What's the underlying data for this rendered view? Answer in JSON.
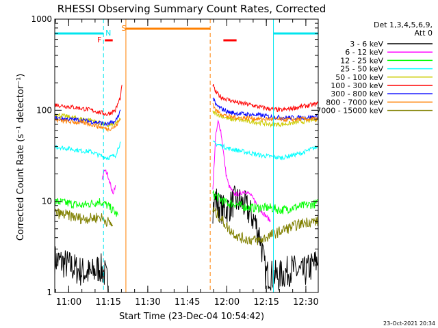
{
  "chart_data": {
    "type": "line",
    "title": "RHESSI Observing Summary Count Rates, Corrected",
    "xlabel": "Start Time (23-Dec-04 10:54:42)",
    "ylabel": "Corrected Count Rate (s⁻¹ detector⁻¹)",
    "y_scale": "log",
    "ylim": [
      1,
      1000
    ],
    "y_ticks": [
      "1",
      "10",
      "100",
      "1000"
    ],
    "xlim_minutes": [
      0,
      100
    ],
    "x_ticks": [
      {
        "label": "11:00",
        "minute": 5.3
      },
      {
        "label": "11:15",
        "minute": 20.3
      },
      {
        "label": "11:30",
        "minute": 35.3
      },
      {
        "label": "11:45",
        "minute": 50.3
      },
      {
        "label": "12:00",
        "minute": 65.3
      },
      {
        "label": "12:15",
        "minute": 80.3
      },
      {
        "label": "12:30",
        "minute": 95.3
      }
    ],
    "legend": {
      "placement": "right",
      "header": [
        "Det 1,3,4,5,6,9,",
        "Att 0"
      ]
    },
    "series": [
      {
        "name": "3 - 6 keV",
        "color": "#000000",
        "pre": [
          [
            0,
            2.3
          ],
          [
            5,
            2.0
          ],
          [
            10,
            1.7
          ],
          [
            14,
            1.6
          ],
          [
            17,
            1.9
          ],
          [
            19,
            1.6
          ],
          [
            21,
            1.0
          ]
        ],
        "post": [
          [
            60,
            8.5
          ],
          [
            61,
            11
          ],
          [
            62,
            9
          ],
          [
            64,
            8
          ],
          [
            66,
            8.5
          ],
          [
            68,
            10
          ],
          [
            70,
            10
          ],
          [
            72,
            9
          ],
          [
            74,
            7.5
          ],
          [
            76,
            6
          ],
          [
            78,
            4
          ],
          [
            80,
            1.6
          ],
          [
            85,
            1.5
          ],
          [
            90,
            1.8
          ],
          [
            94,
            1.6
          ],
          [
            100,
            2.2
          ]
        ]
      },
      {
        "name": "6 - 12 keV",
        "color": "#ff00ff",
        "pre": [
          [
            18,
            18
          ],
          [
            19,
            22
          ],
          [
            20,
            20
          ],
          [
            21,
            16
          ],
          [
            22,
            12
          ],
          [
            23,
            15
          ]
        ],
        "post": [
          [
            60,
            13
          ],
          [
            61,
            50
          ],
          [
            62,
            75
          ],
          [
            63,
            60
          ],
          [
            64,
            35
          ],
          [
            65,
            20
          ],
          [
            66,
            15
          ],
          [
            68,
            12
          ],
          [
            70,
            12
          ],
          [
            72,
            13
          ],
          [
            74,
            12
          ],
          [
            76,
            10
          ],
          [
            78,
            8
          ],
          [
            80,
            7
          ],
          [
            82,
            6
          ]
        ]
      },
      {
        "name": "12 - 25 keV",
        "color": "#00ff00",
        "pre": [
          [
            0,
            10
          ],
          [
            5,
            9.5
          ],
          [
            10,
            9
          ],
          [
            14,
            9.5
          ],
          [
            17,
            10
          ],
          [
            20,
            9
          ],
          [
            22,
            8
          ],
          [
            24,
            7
          ]
        ],
        "post": [
          [
            60,
            12
          ],
          [
            62,
            11
          ],
          [
            64,
            10
          ],
          [
            66,
            9.5
          ],
          [
            68,
            9.5
          ],
          [
            70,
            9
          ],
          [
            74,
            8.5
          ],
          [
            78,
            8.5
          ],
          [
            82,
            8.5
          ],
          [
            86,
            8
          ],
          [
            90,
            8.5
          ],
          [
            95,
            9
          ],
          [
            100,
            9.5
          ]
        ]
      },
      {
        "name": "25 - 50 keV",
        "color": "#00ffff",
        "pre": [
          [
            0,
            40
          ],
          [
            5,
            38
          ],
          [
            10,
            36
          ],
          [
            14,
            35
          ],
          [
            17,
            32
          ],
          [
            20,
            30
          ],
          [
            23,
            32
          ],
          [
            25,
            45
          ]
        ],
        "post": [
          [
            60,
            44
          ],
          [
            62,
            42
          ],
          [
            64,
            40
          ],
          [
            66,
            38
          ],
          [
            70,
            36
          ],
          [
            74,
            34
          ],
          [
            78,
            32
          ],
          [
            82,
            31
          ],
          [
            86,
            30
          ],
          [
            90,
            32
          ],
          [
            94,
            34
          ],
          [
            98,
            38
          ],
          [
            100,
            40
          ]
        ]
      },
      {
        "name": "50 - 100 keV",
        "color": "#cccc00",
        "pre": [
          [
            0,
            90
          ],
          [
            5,
            85
          ],
          [
            10,
            80
          ],
          [
            14,
            78
          ],
          [
            17,
            72
          ],
          [
            20,
            68
          ],
          [
            23,
            70
          ],
          [
            25,
            80
          ]
        ],
        "post": [
          [
            60,
            95
          ],
          [
            62,
            90
          ],
          [
            64,
            85
          ],
          [
            66,
            80
          ],
          [
            70,
            78
          ],
          [
            74,
            75
          ],
          [
            78,
            73
          ],
          [
            82,
            70
          ],
          [
            86,
            70
          ],
          [
            90,
            72
          ],
          [
            94,
            75
          ],
          [
            98,
            78
          ],
          [
            100,
            80
          ]
        ]
      },
      {
        "name": "100 - 300 keV",
        "color": "#ff0000",
        "pre": [
          [
            0,
            115
          ],
          [
            5,
            110
          ],
          [
            10,
            105
          ],
          [
            14,
            100
          ],
          [
            17,
            95
          ],
          [
            20,
            90
          ],
          [
            23,
            100
          ],
          [
            25,
            140
          ],
          [
            25.5,
            190
          ]
        ],
        "post": [
          [
            60,
            190
          ],
          [
            61,
            160
          ],
          [
            63,
            140
          ],
          [
            66,
            130
          ],
          [
            70,
            120
          ],
          [
            74,
            115
          ],
          [
            78,
            108
          ],
          [
            82,
            103
          ],
          [
            86,
            100
          ],
          [
            90,
            105
          ],
          [
            94,
            110
          ],
          [
            98,
            115
          ],
          [
            100,
            118
          ]
        ]
      },
      {
        "name": "300 - 800 keV",
        "color": "#0000ff",
        "pre": [
          [
            0,
            82
          ],
          [
            5,
            80
          ],
          [
            10,
            78
          ],
          [
            14,
            75
          ],
          [
            17,
            73
          ],
          [
            20,
            70
          ],
          [
            23,
            75
          ],
          [
            25,
            100
          ]
        ],
        "post": [
          [
            60,
            140
          ],
          [
            61,
            115
          ],
          [
            63,
            105
          ],
          [
            66,
            95
          ],
          [
            70,
            92
          ],
          [
            74,
            90
          ],
          [
            78,
            88
          ],
          [
            82,
            85
          ],
          [
            86,
            83
          ],
          [
            90,
            83
          ],
          [
            94,
            83
          ],
          [
            98,
            84
          ],
          [
            100,
            85
          ]
        ]
      },
      {
        "name": "800 - 7000 keV",
        "color": "#ff8000",
        "pre": [
          [
            0,
            78
          ],
          [
            5,
            75
          ],
          [
            10,
            73
          ],
          [
            14,
            70
          ],
          [
            17,
            66
          ],
          [
            20,
            62
          ],
          [
            23,
            66
          ],
          [
            25,
            80
          ]
        ],
        "post": [
          [
            60,
            120
          ],
          [
            61,
            100
          ],
          [
            63,
            92
          ],
          [
            66,
            85
          ],
          [
            70,
            83
          ],
          [
            74,
            82
          ],
          [
            78,
            80
          ],
          [
            82,
            80
          ],
          [
            86,
            79
          ],
          [
            90,
            79
          ],
          [
            94,
            80
          ],
          [
            98,
            80
          ],
          [
            100,
            80
          ]
        ]
      },
      {
        "name": "7000 - 15000 keV",
        "color": "#808000",
        "pre": [
          [
            0,
            7.5
          ],
          [
            5,
            7
          ],
          [
            10,
            6.5
          ],
          [
            14,
            6.5
          ],
          [
            17,
            6.8
          ],
          [
            20,
            6
          ],
          [
            22,
            5.5
          ]
        ],
        "post": [
          [
            60,
            8
          ],
          [
            62,
            7
          ],
          [
            64,
            6
          ],
          [
            66,
            5
          ],
          [
            68,
            4.5
          ],
          [
            70,
            4
          ],
          [
            74,
            3.8
          ],
          [
            78,
            3.7
          ],
          [
            80,
            4
          ],
          [
            84,
            4.5
          ],
          [
            88,
            5
          ],
          [
            92,
            5.5
          ],
          [
            96,
            6
          ],
          [
            100,
            6
          ]
        ]
      }
    ],
    "annotations": {
      "flags": [
        {
          "label": "F",
          "color": "#ff0000",
          "bar": [
            19,
            22
          ]
        },
        {
          "label": "N",
          "color": "#00e5ee",
          "bar": [
            0,
            18.5
          ]
        },
        {
          "label": "S",
          "color": "#ff8000",
          "bar": [
            27,
            59
          ]
        }
      ],
      "extra_bars": [
        {
          "color": "#00e5ee",
          "bar": [
            83,
            100
          ]
        },
        {
          "color": "#ff0000",
          "bar": [
            64,
            69
          ]
        }
      ],
      "vertical_lines": [
        {
          "minute": 18.5,
          "color": "#00e5ee",
          "style": "dashed"
        },
        {
          "minute": 27,
          "color": "#ff8000",
          "style": "solid"
        },
        {
          "minute": 59,
          "color": "#ff8000",
          "style": "dashed"
        },
        {
          "minute": 83,
          "color": "#00e5ee",
          "style": "solid"
        },
        {
          "minute": 100,
          "color": "#00e5ee",
          "style": "dashed"
        },
        {
          "minute": 0,
          "color": "#00e5ee",
          "style": "solid"
        }
      ]
    }
  },
  "footer_timestamp": "23-Oct-2021 20:34"
}
